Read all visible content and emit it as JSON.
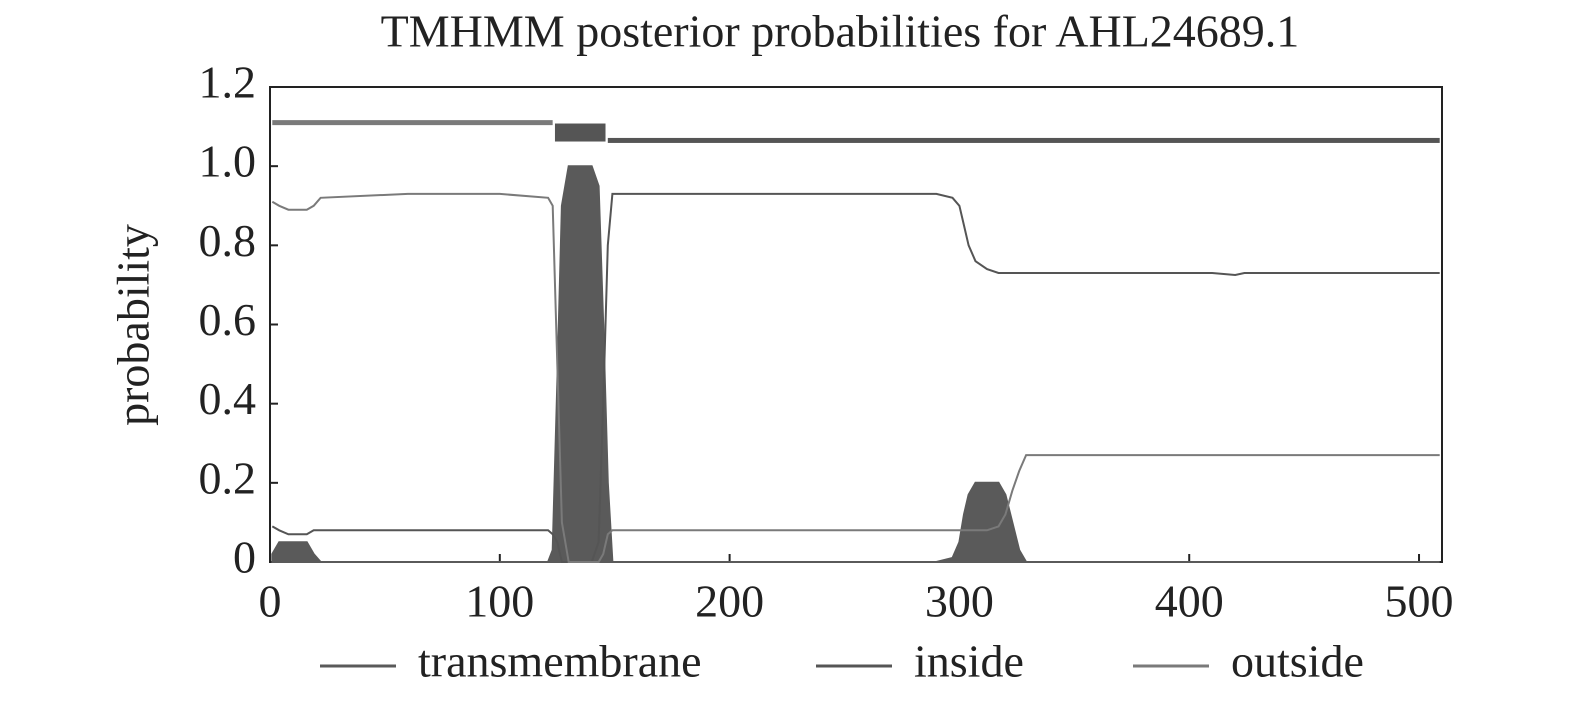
{
  "chart_data": {
    "type": "line",
    "title": "TMHMM posterior probabilities for AHL24689.1",
    "y_label": "probability",
    "xlim": [
      0,
      510
    ],
    "ylim": [
      0,
      1.2
    ],
    "xticks": [
      0,
      100,
      200,
      300,
      400,
      500
    ],
    "yticks": [
      0,
      0.2,
      0.4,
      0.6,
      0.8,
      {
        "value": 1,
        "label": "1.0"
      },
      1.2
    ],
    "x": [
      1,
      4,
      8,
      12,
      16,
      19,
      22,
      60,
      100,
      121,
      123,
      125,
      127,
      130,
      135,
      140,
      143,
      145,
      147,
      149,
      200,
      250,
      290,
      297,
      300,
      302,
      304,
      307,
      312,
      317,
      320,
      323,
      326,
      329,
      350,
      400,
      410,
      420,
      424,
      450,
      509
    ],
    "series": [
      {
        "name": "transmembrane",
        "color": "#5a5a5a",
        "fill": true,
        "values": [
          0.02,
          0.05,
          0.05,
          0.05,
          0.05,
          0.02,
          0,
          0,
          0,
          0,
          0.03,
          0.45,
          0.9,
          1.0,
          1.0,
          1.0,
          0.95,
          0.6,
          0.2,
          0,
          0,
          0,
          0,
          0.01,
          0.05,
          0.12,
          0.17,
          0.2,
          0.2,
          0.2,
          0.17,
          0.1,
          0.03,
          0,
          0,
          0,
          0,
          0,
          0,
          0,
          0
        ]
      },
      {
        "name": "inside",
        "color": "#555555",
        "fill": false,
        "values": [
          0.09,
          0.08,
          0.07,
          0.07,
          0.07,
          0.08,
          0.08,
          0.08,
          0.08,
          0.08,
          0.07,
          0.05,
          0,
          0,
          0,
          0,
          0.05,
          0.4,
          0.8,
          0.93,
          0.93,
          0.93,
          0.93,
          0.92,
          0.9,
          0.85,
          0.8,
          0.76,
          0.74,
          0.73,
          0.73,
          0.73,
          0.73,
          0.73,
          0.73,
          0.73,
          0.73,
          0.725,
          0.73,
          0.73,
          0.73
        ]
      },
      {
        "name": "outside",
        "color": "#7a7a7a",
        "fill": false,
        "values": [
          0.91,
          0.9,
          0.89,
          0.89,
          0.89,
          0.9,
          0.92,
          0.93,
          0.93,
          0.92,
          0.9,
          0.5,
          0.1,
          0,
          0,
          0,
          0,
          0.02,
          0.07,
          0.08,
          0.08,
          0.08,
          0.08,
          0.08,
          0.08,
          0.08,
          0.08,
          0.08,
          0.08,
          0.09,
          0.12,
          0.18,
          0.23,
          0.27,
          0.27,
          0.27,
          0.27,
          0.27,
          0.27,
          0.27,
          0.27
        ]
      }
    ],
    "topology": [
      {
        "start": 1,
        "end": 123,
        "y": 1.11,
        "color": "#7a7a7a"
      },
      {
        "start": 124,
        "end": 146,
        "y": 1.085,
        "color": "#555555"
      },
      {
        "start": 147,
        "end": 509,
        "y": 1.065,
        "color": "#555555"
      }
    ]
  }
}
